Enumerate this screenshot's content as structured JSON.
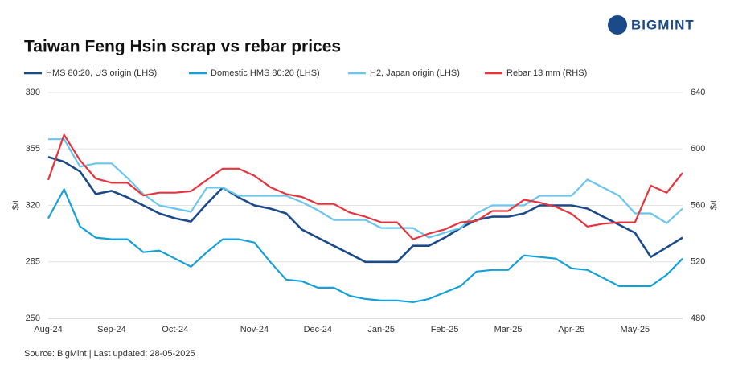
{
  "logo": "BIGMINT",
  "chart_data": {
    "type": "line",
    "title": "Taiwan Feng Hsin scrap vs rebar prices",
    "y_label": "$/t",
    "y2_label": "$/t",
    "source": "Source: BigMint |  Last updated: 28-05-2025",
    "categories": [
      "Aug-24",
      null,
      null,
      null,
      "Sep-24",
      null,
      null,
      null,
      "Oct-24",
      null,
      null,
      null,
      null,
      "Nov-24",
      null,
      null,
      null,
      "Dec-24",
      null,
      null,
      null,
      "Jan-25",
      null,
      null,
      null,
      "Feb-25",
      null,
      null,
      null,
      "Mar-25",
      null,
      null,
      null,
      "Apr-25",
      null,
      null,
      null,
      "May-25",
      null,
      null,
      null
    ],
    "ylim": [
      250,
      390
    ],
    "yticks": [
      250,
      285,
      320,
      355,
      390
    ],
    "y2lim": [
      480,
      640
    ],
    "y2ticks": [
      480,
      520,
      560,
      600,
      640
    ],
    "grid": true,
    "series": [
      {
        "name": "HMS 80:20, US origin (LHS)",
        "color": "#1b4a8a",
        "values": [
          350,
          347,
          341,
          327,
          329,
          325,
          320,
          315,
          312,
          310,
          321,
          331,
          325,
          320,
          318,
          315,
          305,
          300,
          295,
          290,
          285,
          285,
          285,
          295,
          295,
          300,
          306,
          311,
          313,
          313,
          315,
          320,
          320,
          320,
          318,
          313,
          308,
          303,
          288,
          294,
          300
        ]
      },
      {
        "name": "Domestic HMS 80:20 (LHS)",
        "color": "#14a0d9",
        "values": [
          312,
          330,
          307,
          300,
          299,
          299,
          291,
          292,
          287,
          282,
          291,
          299,
          299,
          297,
          285,
          274,
          273,
          269,
          269,
          264,
          262,
          261,
          261,
          260,
          262,
          266,
          270,
          279,
          280,
          280,
          289,
          288,
          287,
          281,
          280,
          275,
          270,
          270,
          270,
          277,
          287
        ]
      },
      {
        "name": "H2, Japan origin (LHS)",
        "color": "#6ac6ee",
        "values": [
          361,
          361,
          344,
          346,
          346,
          337,
          327,
          320,
          318,
          316,
          331,
          331,
          326,
          326,
          326,
          326,
          322,
          317,
          311,
          311,
          311,
          306,
          306,
          306,
          300,
          303,
          306,
          315,
          320,
          320,
          320,
          326,
          326,
          326,
          336,
          331,
          326,
          315,
          315,
          309,
          318
        ]
      },
      {
        "name": "Rebar 13 mm (RHS)",
        "color": "#e5343d",
        "axis": "y2",
        "values": [
          578,
          610,
          592,
          579,
          576,
          576,
          567,
          569,
          569,
          570,
          578,
          586,
          586,
          581,
          573,
          568,
          566,
          561,
          561,
          555,
          552,
          548,
          548,
          536,
          540,
          543,
          548,
          549,
          556,
          556,
          564,
          562,
          559,
          554,
          545,
          547,
          548,
          548,
          574,
          569,
          583
        ]
      }
    ]
  }
}
